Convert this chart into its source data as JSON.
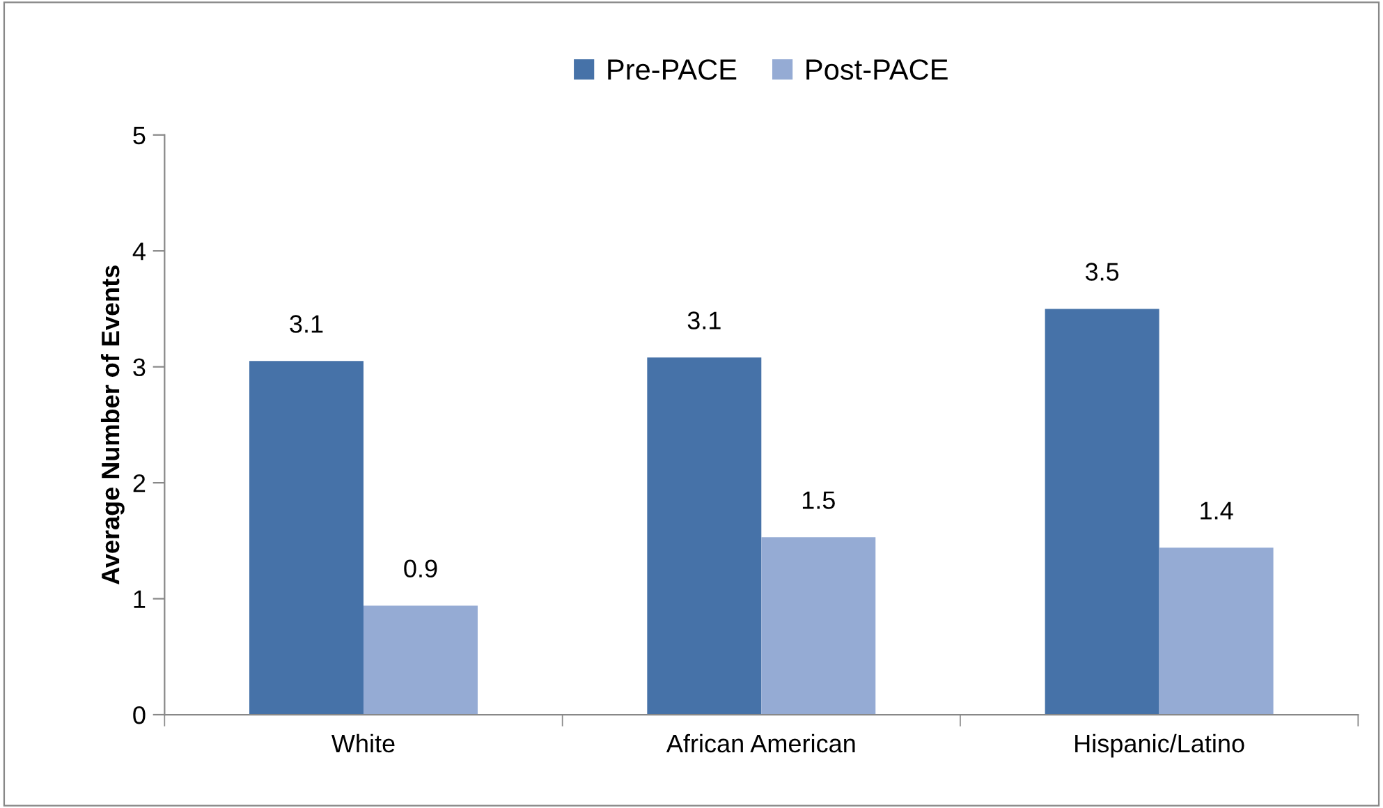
{
  "chart_data": {
    "type": "bar",
    "ylabel": "Average Number of Events",
    "categories": [
      "White",
      "African American",
      "Hispanic/Latino"
    ],
    "series": [
      {
        "name": "Pre-PACE",
        "color": "#4672a8",
        "values": [
          3.05,
          3.08,
          3.5
        ],
        "value_labels": [
          "3.1",
          "3.1",
          "3.5"
        ]
      },
      {
        "name": "Post-PACE",
        "color": "#95abd4",
        "values": [
          0.94,
          1.53,
          1.44
        ],
        "value_labels": [
          "0.9",
          "1.5",
          "1.4"
        ]
      }
    ],
    "ylim": [
      0,
      5
    ],
    "yticks": [
      0,
      1,
      2,
      3,
      4,
      5
    ],
    "grid": false,
    "legend": "top"
  }
}
